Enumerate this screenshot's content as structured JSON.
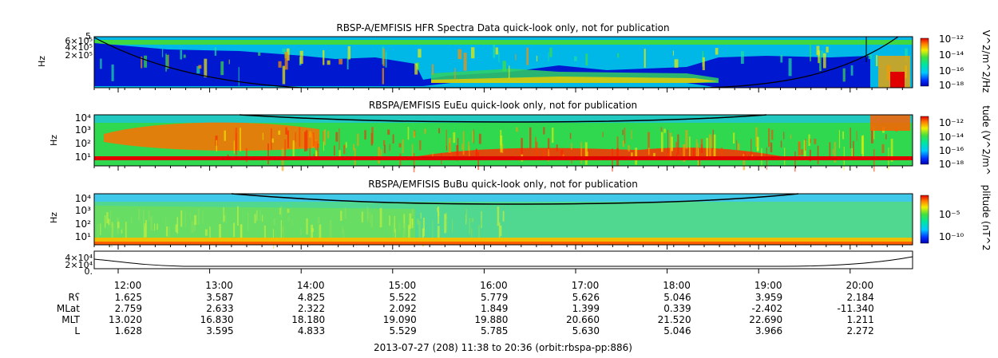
{
  "chart_data": {
    "type": "heatmap",
    "panels": [
      {
        "title": "RBSP-A/EMFISIS  HFR Spectra Data quick-look only, not for publication",
        "ylabel": "Hz",
        "yticks": [
          "6×10⁵",
          "4×10⁵",
          "2×10⁵"
        ],
        "ytop_label": "5",
        "colorbar_label": "V^2/m^2/Hz",
        "colorbar_ticks": [
          "10⁻¹²",
          "10⁻¹⁴",
          "10⁻¹⁶",
          "10⁻¹⁸"
        ]
      },
      {
        "title": "RBSPA/EMFISIS  EuEu quick-look only, not for publication",
        "ylabel": "Hz",
        "yticks": [
          "10⁴",
          "10³",
          "10²",
          "10¹"
        ],
        "colorbar_label": "tude (V^2/m^",
        "colorbar_ticks": [
          "10⁻¹²",
          "10⁻¹⁴",
          "10⁻¹⁶",
          "10⁻¹⁸"
        ]
      },
      {
        "title": "RBSPA/EMFISIS  BuBu quick-look only, not for publication",
        "ylabel": "Hz",
        "yticks": [
          "10⁴",
          "10³",
          "10²",
          "10¹"
        ],
        "colorbar_label": "plitude (nT^2",
        "colorbar_ticks": [
          "10⁻⁵",
          "10⁻¹⁰"
        ]
      },
      {
        "title": "",
        "ylabel": "",
        "yticks": [
          "4×10⁴",
          "2×10⁴",
          "0."
        ]
      }
    ],
    "x": [
      "12:00",
      "13:00",
      "14:00",
      "15:00",
      "16:00",
      "17:00",
      "18:00",
      "19:00",
      "20:00"
    ],
    "ephemeris": [
      {
        "label": "Rʕ",
        "values": [
          "1.625",
          "3.587",
          "4.825",
          "5.522",
          "5.779",
          "5.626",
          "5.046",
          "3.959",
          "2.184"
        ]
      },
      {
        "label": "MLat",
        "values": [
          "2.759",
          "2.633",
          "2.322",
          "2.092",
          "1.849",
          "1.399",
          "0.339",
          "-2.402",
          "-11.340"
        ]
      },
      {
        "label": "MLT",
        "values": [
          "13.020",
          "16.830",
          "18.180",
          "19.090",
          "19.880",
          "20.660",
          "21.520",
          "22.690",
          "1.211"
        ]
      },
      {
        "label": "L",
        "values": [
          "1.628",
          "3.595",
          "4.833",
          "5.529",
          "5.785",
          "5.630",
          "5.046",
          "3.966",
          "2.272"
        ]
      }
    ],
    "footer": "2013-07-27 (208) 11:38 to 20:36 (orbit:rbspa-pp:886)"
  }
}
